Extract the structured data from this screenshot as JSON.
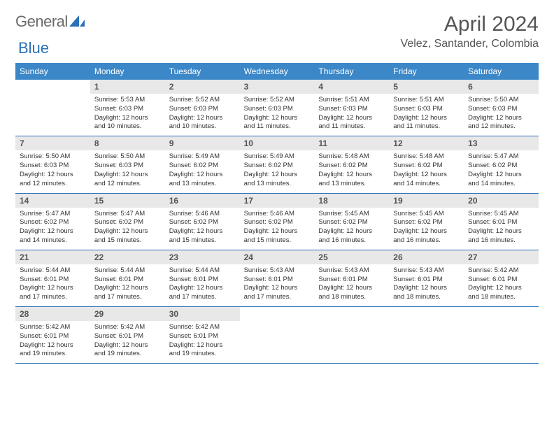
{
  "logo": {
    "part1": "General",
    "part2": "Blue"
  },
  "title": "April 2024",
  "location": "Velez, Santander, Colombia",
  "colors": {
    "header_bg": "#3b87c8",
    "header_text": "#ffffff",
    "daynum_bg": "#e8e8e8",
    "daynum_text": "#555555",
    "border": "#2a71b8",
    "logo_gray": "#6a6a6a",
    "logo_blue": "#2a71b8"
  },
  "font": {
    "title_size": 30,
    "location_size": 16,
    "header_size": 12,
    "cell_size": 9.5
  },
  "day_names": [
    "Sunday",
    "Monday",
    "Tuesday",
    "Wednesday",
    "Thursday",
    "Friday",
    "Saturday"
  ],
  "weeks": [
    [
      {
        "n": "",
        "sunrise": "",
        "sunset": "",
        "daylight": ""
      },
      {
        "n": "1",
        "sunrise": "Sunrise: 5:53 AM",
        "sunset": "Sunset: 6:03 PM",
        "daylight": "Daylight: 12 hours and 10 minutes."
      },
      {
        "n": "2",
        "sunrise": "Sunrise: 5:52 AM",
        "sunset": "Sunset: 6:03 PM",
        "daylight": "Daylight: 12 hours and 10 minutes."
      },
      {
        "n": "3",
        "sunrise": "Sunrise: 5:52 AM",
        "sunset": "Sunset: 6:03 PM",
        "daylight": "Daylight: 12 hours and 11 minutes."
      },
      {
        "n": "4",
        "sunrise": "Sunrise: 5:51 AM",
        "sunset": "Sunset: 6:03 PM",
        "daylight": "Daylight: 12 hours and 11 minutes."
      },
      {
        "n": "5",
        "sunrise": "Sunrise: 5:51 AM",
        "sunset": "Sunset: 6:03 PM",
        "daylight": "Daylight: 12 hours and 11 minutes."
      },
      {
        "n": "6",
        "sunrise": "Sunrise: 5:50 AM",
        "sunset": "Sunset: 6:03 PM",
        "daylight": "Daylight: 12 hours and 12 minutes."
      }
    ],
    [
      {
        "n": "7",
        "sunrise": "Sunrise: 5:50 AM",
        "sunset": "Sunset: 6:03 PM",
        "daylight": "Daylight: 12 hours and 12 minutes."
      },
      {
        "n": "8",
        "sunrise": "Sunrise: 5:50 AM",
        "sunset": "Sunset: 6:03 PM",
        "daylight": "Daylight: 12 hours and 12 minutes."
      },
      {
        "n": "9",
        "sunrise": "Sunrise: 5:49 AM",
        "sunset": "Sunset: 6:02 PM",
        "daylight": "Daylight: 12 hours and 13 minutes."
      },
      {
        "n": "10",
        "sunrise": "Sunrise: 5:49 AM",
        "sunset": "Sunset: 6:02 PM",
        "daylight": "Daylight: 12 hours and 13 minutes."
      },
      {
        "n": "11",
        "sunrise": "Sunrise: 5:48 AM",
        "sunset": "Sunset: 6:02 PM",
        "daylight": "Daylight: 12 hours and 13 minutes."
      },
      {
        "n": "12",
        "sunrise": "Sunrise: 5:48 AM",
        "sunset": "Sunset: 6:02 PM",
        "daylight": "Daylight: 12 hours and 14 minutes."
      },
      {
        "n": "13",
        "sunrise": "Sunrise: 5:47 AM",
        "sunset": "Sunset: 6:02 PM",
        "daylight": "Daylight: 12 hours and 14 minutes."
      }
    ],
    [
      {
        "n": "14",
        "sunrise": "Sunrise: 5:47 AM",
        "sunset": "Sunset: 6:02 PM",
        "daylight": "Daylight: 12 hours and 14 minutes."
      },
      {
        "n": "15",
        "sunrise": "Sunrise: 5:47 AM",
        "sunset": "Sunset: 6:02 PM",
        "daylight": "Daylight: 12 hours and 15 minutes."
      },
      {
        "n": "16",
        "sunrise": "Sunrise: 5:46 AM",
        "sunset": "Sunset: 6:02 PM",
        "daylight": "Daylight: 12 hours and 15 minutes."
      },
      {
        "n": "17",
        "sunrise": "Sunrise: 5:46 AM",
        "sunset": "Sunset: 6:02 PM",
        "daylight": "Daylight: 12 hours and 15 minutes."
      },
      {
        "n": "18",
        "sunrise": "Sunrise: 5:45 AM",
        "sunset": "Sunset: 6:02 PM",
        "daylight": "Daylight: 12 hours and 16 minutes."
      },
      {
        "n": "19",
        "sunrise": "Sunrise: 5:45 AM",
        "sunset": "Sunset: 6:02 PM",
        "daylight": "Daylight: 12 hours and 16 minutes."
      },
      {
        "n": "20",
        "sunrise": "Sunrise: 5:45 AM",
        "sunset": "Sunset: 6:01 PM",
        "daylight": "Daylight: 12 hours and 16 minutes."
      }
    ],
    [
      {
        "n": "21",
        "sunrise": "Sunrise: 5:44 AM",
        "sunset": "Sunset: 6:01 PM",
        "daylight": "Daylight: 12 hours and 17 minutes."
      },
      {
        "n": "22",
        "sunrise": "Sunrise: 5:44 AM",
        "sunset": "Sunset: 6:01 PM",
        "daylight": "Daylight: 12 hours and 17 minutes."
      },
      {
        "n": "23",
        "sunrise": "Sunrise: 5:44 AM",
        "sunset": "Sunset: 6:01 PM",
        "daylight": "Daylight: 12 hours and 17 minutes."
      },
      {
        "n": "24",
        "sunrise": "Sunrise: 5:43 AM",
        "sunset": "Sunset: 6:01 PM",
        "daylight": "Daylight: 12 hours and 17 minutes."
      },
      {
        "n": "25",
        "sunrise": "Sunrise: 5:43 AM",
        "sunset": "Sunset: 6:01 PM",
        "daylight": "Daylight: 12 hours and 18 minutes."
      },
      {
        "n": "26",
        "sunrise": "Sunrise: 5:43 AM",
        "sunset": "Sunset: 6:01 PM",
        "daylight": "Daylight: 12 hours and 18 minutes."
      },
      {
        "n": "27",
        "sunrise": "Sunrise: 5:42 AM",
        "sunset": "Sunset: 6:01 PM",
        "daylight": "Daylight: 12 hours and 18 minutes."
      }
    ],
    [
      {
        "n": "28",
        "sunrise": "Sunrise: 5:42 AM",
        "sunset": "Sunset: 6:01 PM",
        "daylight": "Daylight: 12 hours and 19 minutes."
      },
      {
        "n": "29",
        "sunrise": "Sunrise: 5:42 AM",
        "sunset": "Sunset: 6:01 PM",
        "daylight": "Daylight: 12 hours and 19 minutes."
      },
      {
        "n": "30",
        "sunrise": "Sunrise: 5:42 AM",
        "sunset": "Sunset: 6:01 PM",
        "daylight": "Daylight: 12 hours and 19 minutes."
      },
      {
        "n": "",
        "sunrise": "",
        "sunset": "",
        "daylight": ""
      },
      {
        "n": "",
        "sunrise": "",
        "sunset": "",
        "daylight": ""
      },
      {
        "n": "",
        "sunrise": "",
        "sunset": "",
        "daylight": ""
      },
      {
        "n": "",
        "sunrise": "",
        "sunset": "",
        "daylight": ""
      }
    ]
  ]
}
